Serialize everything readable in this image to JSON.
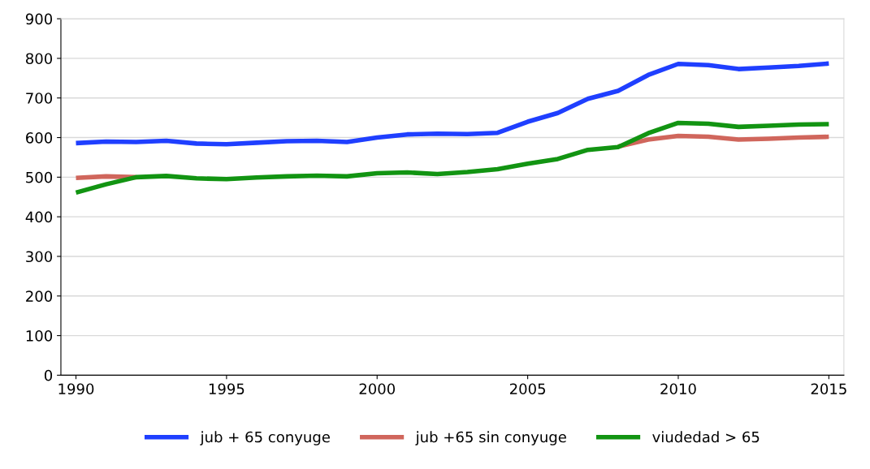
{
  "chart_data": {
    "type": "line",
    "x": [
      1990,
      1991,
      1992,
      1993,
      1994,
      1995,
      1996,
      1997,
      1998,
      1999,
      2000,
      2001,
      2002,
      2003,
      2004,
      2005,
      2006,
      2007,
      2008,
      2009,
      2010,
      2011,
      2012,
      2013,
      2014,
      2015
    ],
    "series": [
      {
        "name": "jub + 65 conyuge",
        "color": "#1f3fff",
        "values": [
          586,
          590,
          589,
          592,
          585,
          583,
          587,
          591,
          592,
          589,
          600,
          608,
          610,
          609,
          612,
          640,
          662,
          698,
          718,
          758,
          786,
          783,
          773,
          777,
          781,
          787
        ]
      },
      {
        "name": "jub +65 sin conyuge",
        "color": "#d0665c",
        "values": [
          498,
          502,
          500,
          null,
          null,
          null,
          null,
          null,
          null,
          null,
          null,
          null,
          null,
          null,
          null,
          null,
          null,
          null,
          577,
          595,
          604,
          602,
          595,
          597,
          600,
          602
        ]
      },
      {
        "name": "viudedad > 65",
        "color": "#129412",
        "values": [
          461,
          482,
          500,
          503,
          497,
          495,
          499,
          502,
          504,
          502,
          510,
          512,
          508,
          513,
          520,
          534,
          546,
          569,
          576,
          611,
          637,
          635,
          627,
          630,
          633,
          634
        ]
      }
    ],
    "xlim": [
      1989.5,
      2015.5
    ],
    "xticks": [
      1990,
      1995,
      2000,
      2005,
      2010,
      2015
    ],
    "ylim": [
      0,
      900
    ],
    "yticks": [
      0,
      100,
      200,
      300,
      400,
      500,
      600,
      700,
      800,
      900
    ],
    "grid": "y",
    "legend": "bottom",
    "marker": "none",
    "line_style": "solid"
  }
}
